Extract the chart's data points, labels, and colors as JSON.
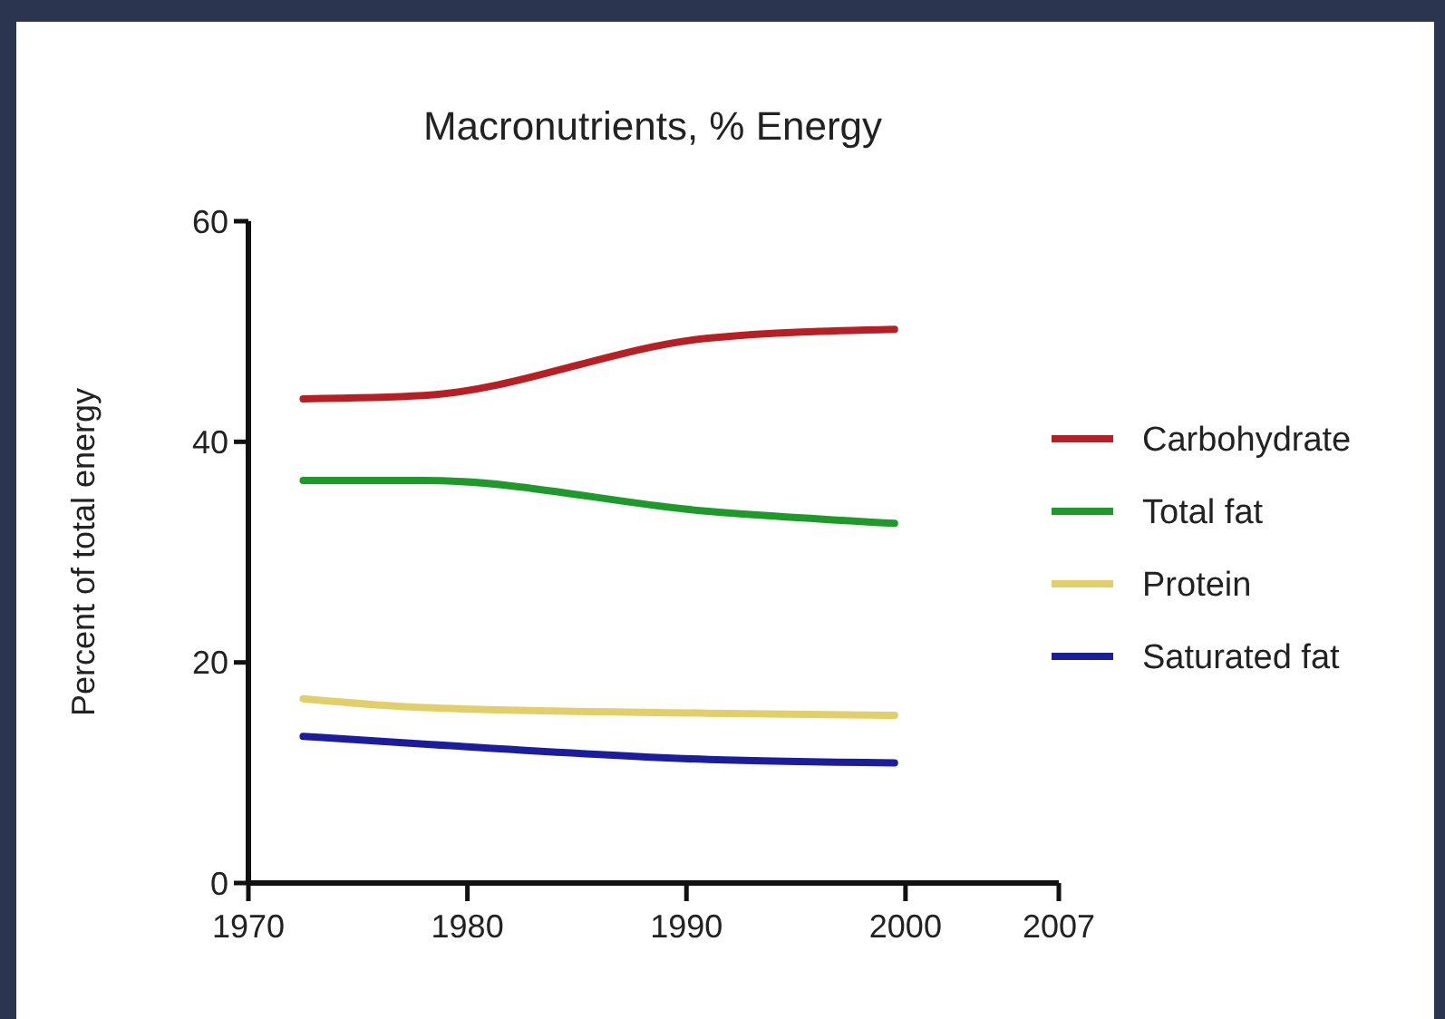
{
  "chart_data": {
    "type": "line",
    "title": "Macronutrients, % Energy",
    "ylabel": "Percent of total energy",
    "x": [
      1972.5,
      1978,
      1991,
      1999.5
    ],
    "xlim": [
      1970,
      2007
    ],
    "xticks": [
      1970,
      1980,
      1990,
      2000,
      2007
    ],
    "ylim": [
      0,
      60
    ],
    "yticks": [
      0,
      20,
      40,
      60
    ],
    "series": [
      {
        "name": "Carbohydrate",
        "color": "#b81f24",
        "values": [
          43.9,
          44.2,
          49.4,
          50.2
        ]
      },
      {
        "name": "Total fat",
        "color": "#1e9a2a",
        "values": [
          36.5,
          36.5,
          33.7,
          32.6
        ]
      },
      {
        "name": "Protein",
        "color": "#e3cf6a",
        "values": [
          16.7,
          15.9,
          15.4,
          15.2
        ]
      },
      {
        "name": "Saturated fat",
        "color": "#1c1c9e",
        "values": [
          13.3,
          12.6,
          11.2,
          10.9
        ]
      }
    ],
    "legend": "right",
    "grid": false,
    "marker": "none",
    "line_style": "solid"
  }
}
